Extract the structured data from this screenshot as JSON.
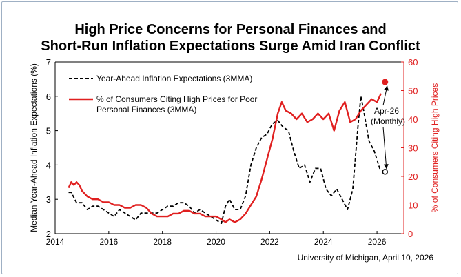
{
  "title_line1": "High Price Concerns for Personal Finances and",
  "title_line2": "Short-Run Inflation Expectations Surge Amid Iran Conflict",
  "source": "University of Michigan, April 10, 2026",
  "chart_data": {
    "type": "line",
    "xlabel": "",
    "ylabel_left": "Median Year-Ahead Inflation Expectations (%)",
    "ylabel_right": "% of Consumers Citing High Prices",
    "xlim": [
      2014,
      2027
    ],
    "ylim_left": [
      2,
      7
    ],
    "ylim_right": [
      0,
      60
    ],
    "x_ticks": [
      "2014",
      "2016",
      "2018",
      "2020",
      "2022",
      "2024",
      "2026"
    ],
    "y_ticks_left": [
      "2",
      "3",
      "4",
      "5",
      "6",
      "7"
    ],
    "y_ticks_right": [
      "0",
      "10",
      "20",
      "30",
      "40",
      "50",
      "60"
    ],
    "grid": false,
    "legend_placement": "top-left",
    "colors": {
      "expectations": "#000000",
      "high_prices": "#e02020",
      "right_axis": "#e02020"
    },
    "series": [
      {
        "name": "Year-Ahead Inflation Expectations (3MMA)",
        "axis": "left",
        "style": "dashed",
        "x": [
          2014.5,
          2014.6,
          2014.8,
          2015.0,
          2015.2,
          2015.4,
          2015.6,
          2015.8,
          2016.0,
          2016.2,
          2016.4,
          2016.6,
          2016.8,
          2017.0,
          2017.2,
          2017.4,
          2017.6,
          2017.8,
          2018.0,
          2018.2,
          2018.4,
          2018.6,
          2018.8,
          2019.0,
          2019.2,
          2019.4,
          2019.6,
          2019.8,
          2020.0,
          2020.2,
          2020.35,
          2020.5,
          2020.7,
          2020.9,
          2021.1,
          2021.3,
          2021.5,
          2021.7,
          2021.9,
          2022.1,
          2022.3,
          2022.5,
          2022.7,
          2022.9,
          2023.1,
          2023.3,
          2023.5,
          2023.7,
          2023.9,
          2024.1,
          2024.3,
          2024.5,
          2024.7,
          2024.9,
          2025.1,
          2025.3,
          2025.4,
          2025.5,
          2025.7,
          2025.9,
          2026.1,
          2026.2
        ],
        "values": [
          3.2,
          3.2,
          2.9,
          2.9,
          2.7,
          2.8,
          2.8,
          2.7,
          2.6,
          2.5,
          2.7,
          2.6,
          2.5,
          2.4,
          2.6,
          2.6,
          2.6,
          2.6,
          2.7,
          2.8,
          2.8,
          2.9,
          2.9,
          2.8,
          2.6,
          2.7,
          2.6,
          2.5,
          2.4,
          2.3,
          2.8,
          3.0,
          2.7,
          2.7,
          3.1,
          4.0,
          4.5,
          4.8,
          4.9,
          5.2,
          5.3,
          5.1,
          5.0,
          4.4,
          3.9,
          4.0,
          3.5,
          3.9,
          3.9,
          3.3,
          3.1,
          3.3,
          3.0,
          2.7,
          3.3,
          5.2,
          6.0,
          5.6,
          4.7,
          4.4,
          3.9,
          3.9
        ]
      },
      {
        "name": "% of Consumers Citing High Prices for Poor Personal Finances (3MMA)",
        "axis": "right",
        "style": "solid",
        "x": [
          2014.5,
          2014.6,
          2014.7,
          2014.8,
          2014.9,
          2015.0,
          2015.2,
          2015.4,
          2015.6,
          2015.8,
          2016.0,
          2016.2,
          2016.4,
          2016.6,
          2016.8,
          2017.0,
          2017.2,
          2017.4,
          2017.6,
          2017.8,
          2018.0,
          2018.2,
          2018.4,
          2018.6,
          2018.8,
          2019.0,
          2019.2,
          2019.4,
          2019.6,
          2019.8,
          2020.0,
          2020.2,
          2020.35,
          2020.5,
          2020.7,
          2020.9,
          2021.1,
          2021.3,
          2021.5,
          2021.7,
          2021.9,
          2022.1,
          2022.3,
          2022.45,
          2022.6,
          2022.8,
          2023.0,
          2023.2,
          2023.4,
          2023.6,
          2023.8,
          2024.0,
          2024.2,
          2024.4,
          2024.6,
          2024.8,
          2025.0,
          2025.2,
          2025.4,
          2025.6,
          2025.8,
          2026.0,
          2026.15
        ],
        "values": [
          16,
          18,
          17,
          18,
          17,
          15,
          13,
          12,
          12,
          11,
          11,
          10,
          10,
          9,
          9,
          10,
          10,
          9,
          7,
          6,
          6,
          6,
          7,
          7,
          8,
          8,
          7,
          7,
          6,
          6,
          6,
          5,
          4,
          5,
          4,
          5,
          7,
          10,
          13,
          19,
          26,
          33,
          42,
          46,
          43,
          42,
          40,
          42,
          39,
          40,
          42,
          40,
          42,
          36,
          43,
          46,
          39,
          40,
          43,
          45,
          47,
          46,
          49
        ]
      }
    ],
    "annotation": {
      "text_line1": "Apr-26",
      "text_line2": "(Monthly)",
      "x": 2026.3,
      "expectations_monthly": 3.8,
      "high_prices_monthly": 53
    }
  }
}
